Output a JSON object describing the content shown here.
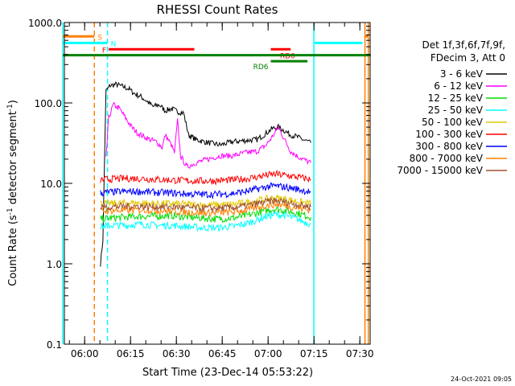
{
  "chart_data": {
    "type": "line",
    "title": "RHESSI Count Rates",
    "xlabel": "Start Time (23-Dec-14 05:53:22)",
    "ylabel_main": "Count Rate (s",
    "ylabel_sup1": "-1",
    "ylabel_mid": " detector segment",
    "ylabel_sup2": "-1",
    "ylabel_end": ")",
    "yscale": "log",
    "ylim": [
      0.1,
      1000
    ],
    "xlim_minutes": [
      0,
      100
    ],
    "y_ticks": [
      {
        "value": 1000,
        "label": "1000.0"
      },
      {
        "value": 100,
        "label": "100.0"
      },
      {
        "value": 10,
        "label": "10.0"
      },
      {
        "value": 1,
        "label": "1.0"
      },
      {
        "value": 0.1,
        "label": "0.1"
      }
    ],
    "x_ticks": [
      {
        "minutes": 6.63,
        "label": "06:00"
      },
      {
        "minutes": 21.63,
        "label": "06:15"
      },
      {
        "minutes": 36.63,
        "label": "06:30"
      },
      {
        "minutes": 51.63,
        "label": "06:45"
      },
      {
        "minutes": 66.63,
        "label": "07:00"
      },
      {
        "minutes": 81.63,
        "label": "07:15"
      },
      {
        "minutes": 96.63,
        "label": "07:30"
      }
    ],
    "legend_header": [
      "Det 1f,3f,6f,7f,9f,",
      "FDecim 3, Att 0"
    ],
    "series": [
      {
        "name": "3 - 6 keV",
        "color": "#000000",
        "x": [
          11.8,
          12.6,
          13.6,
          15,
          17,
          19,
          21,
          23,
          25,
          27,
          29,
          31,
          33,
          35,
          37,
          39,
          40.6,
          43,
          47,
          51,
          55,
          59,
          63,
          66,
          68,
          70,
          72,
          74,
          76,
          78,
          80.6
        ],
        "values": [
          1.0,
          2.0,
          140,
          165,
          170,
          160,
          150,
          130,
          120,
          105,
          90,
          95,
          80,
          85,
          78,
          75,
          40,
          35,
          32,
          30,
          33,
          34,
          35,
          42,
          48,
          50,
          45,
          40,
          38,
          35,
          32
        ]
      },
      {
        "name": "6 - 12 keV",
        "color": "#ff00ff",
        "x": [
          13.6,
          14.5,
          16,
          18,
          20,
          22,
          24,
          26,
          28,
          30,
          32,
          33,
          35,
          36,
          37,
          38,
          40,
          43,
          47,
          51,
          55,
          59,
          63,
          66,
          68,
          70,
          72,
          74,
          76,
          78,
          80.6
        ],
        "values": [
          20,
          65,
          95,
          85,
          65,
          50,
          42,
          38,
          35,
          33,
          28,
          40,
          30,
          24,
          60,
          22,
          16,
          18,
          20,
          22,
          22,
          24,
          25,
          30,
          38,
          50,
          35,
          25,
          22,
          20,
          18
        ]
      },
      {
        "name": "12 - 25 keV",
        "color": "#00dd00",
        "x": [
          11.8,
          15,
          20,
          25,
          30,
          35,
          40,
          45,
          50,
          55,
          60,
          63,
          66,
          69,
          72,
          76,
          80.6
        ],
        "values": [
          3.6,
          3.7,
          3.8,
          3.9,
          3.9,
          4.0,
          3.8,
          3.7,
          3.6,
          3.7,
          4.0,
          4.3,
          4.6,
          4.8,
          4.6,
          4.3,
          3.8
        ]
      },
      {
        "name": "25 - 50 keV",
        "color": "#00ffff",
        "x": [
          11.8,
          15,
          20,
          25,
          30,
          35,
          40,
          45,
          50,
          55,
          60,
          63,
          66,
          69,
          72,
          76,
          80.6
        ],
        "values": [
          2.9,
          3.0,
          3.0,
          3.1,
          3.0,
          3.0,
          2.9,
          2.8,
          2.8,
          2.9,
          3.2,
          3.5,
          3.9,
          4.1,
          4.0,
          3.6,
          3.1
        ]
      },
      {
        "name": "50 - 100 keV",
        "color": "#e6c800",
        "x": [
          11.8,
          15,
          20,
          25,
          30,
          35,
          40,
          45,
          50,
          55,
          60,
          63,
          66,
          69,
          72,
          76,
          80.6
        ],
        "values": [
          5.6,
          5.6,
          5.7,
          5.7,
          5.6,
          5.6,
          5.5,
          5.4,
          5.4,
          5.5,
          5.8,
          6.1,
          6.4,
          6.6,
          6.4,
          6.0,
          5.6
        ]
      },
      {
        "name": "100 - 300 keV",
        "color": "#ff0000",
        "x": [
          11.8,
          15,
          20,
          25,
          30,
          35,
          40,
          45,
          50,
          55,
          60,
          63,
          66,
          69,
          72,
          76,
          80.6
        ],
        "values": [
          11,
          11.3,
          11.5,
          11.5,
          11.2,
          11.0,
          10.8,
          10.7,
          10.8,
          11.0,
          11.5,
          12.0,
          12.6,
          13.0,
          12.6,
          12.0,
          11.2
        ]
      },
      {
        "name": "300 - 800 keV",
        "color": "#0000ff",
        "x": [
          11.8,
          15,
          20,
          25,
          30,
          35,
          40,
          45,
          50,
          55,
          60,
          63,
          66,
          69,
          72,
          76,
          80.6
        ],
        "values": [
          7.6,
          7.8,
          7.9,
          7.9,
          7.7,
          7.6,
          7.4,
          7.3,
          7.3,
          7.5,
          8.0,
          8.5,
          9.0,
          9.3,
          9.0,
          8.5,
          7.8
        ]
      },
      {
        "name": "800 - 7000 keV",
        "color": "#ff8000",
        "x": [
          11.8,
          15,
          20,
          25,
          30,
          35,
          40,
          45,
          50,
          55,
          60,
          63,
          66,
          69,
          72,
          76,
          80.6
        ],
        "values": [
          4.5,
          4.6,
          4.6,
          4.7,
          4.6,
          4.5,
          4.4,
          4.3,
          4.3,
          4.4,
          4.7,
          5.0,
          5.3,
          5.5,
          5.3,
          5.0,
          4.6
        ]
      },
      {
        "name": "7000 - 15000 keV",
        "color": "#a0522d",
        "x": [
          11.8,
          15,
          20,
          25,
          30,
          35,
          40,
          45,
          50,
          55,
          60,
          63,
          66,
          69,
          72,
          76,
          80.6
        ],
        "values": [
          5.1,
          5.1,
          5.2,
          5.2,
          5.1,
          5.1,
          5.0,
          4.9,
          4.9,
          5.0,
          5.3,
          5.6,
          5.9,
          6.1,
          5.9,
          5.5,
          5.1
        ]
      }
    ],
    "flag_bars": [
      {
        "label": "S",
        "color": "#ff8000",
        "x_start": -0.5,
        "x_end": 9.8,
        "y": 672
      },
      {
        "label": "N",
        "color": "#00ffff",
        "x_start": -0.5,
        "x_end": 14.1,
        "y": 558
      },
      {
        "label": "F",
        "color": "#ff0000",
        "x_start": 14.5,
        "x_end": 42.5,
        "y": 465
      },
      {
        "label": "RD0",
        "color": "#ff0000",
        "x_start": 67.5,
        "x_end": 74.0,
        "y": 465
      },
      {
        "label": "",
        "color": "#008000",
        "x_start": -0.5,
        "x_end": 100.2,
        "y": 392
      },
      {
        "label": "RD6",
        "color": "#008000",
        "x_start": 67.5,
        "x_end": 79.5,
        "y": 330
      },
      {
        "label": "",
        "color": "#00ffff",
        "x_start": 81.8,
        "x_end": 97.5,
        "y": 558
      },
      {
        "label": "",
        "color": "#ff8000",
        "x_start": 98.3,
        "x_end": 99.4,
        "y": 672
      }
    ],
    "vertical_lines": [
      {
        "x": -0.5,
        "color": "#00ffff",
        "style": "solid"
      },
      {
        "x": 9.8,
        "color": "#ff8000",
        "style": "dashed"
      },
      {
        "x": 14.1,
        "color": "#00ffff",
        "style": "dashed"
      },
      {
        "x": 81.6,
        "color": "#00ffff",
        "style": "solid"
      },
      {
        "x": 98.3,
        "color": "#ff8000",
        "style": "solid"
      },
      {
        "x": 99.4,
        "color": "#ff8000",
        "style": "solid"
      }
    ]
  },
  "footer_timestamp": "24-Oct-2021 09:05"
}
